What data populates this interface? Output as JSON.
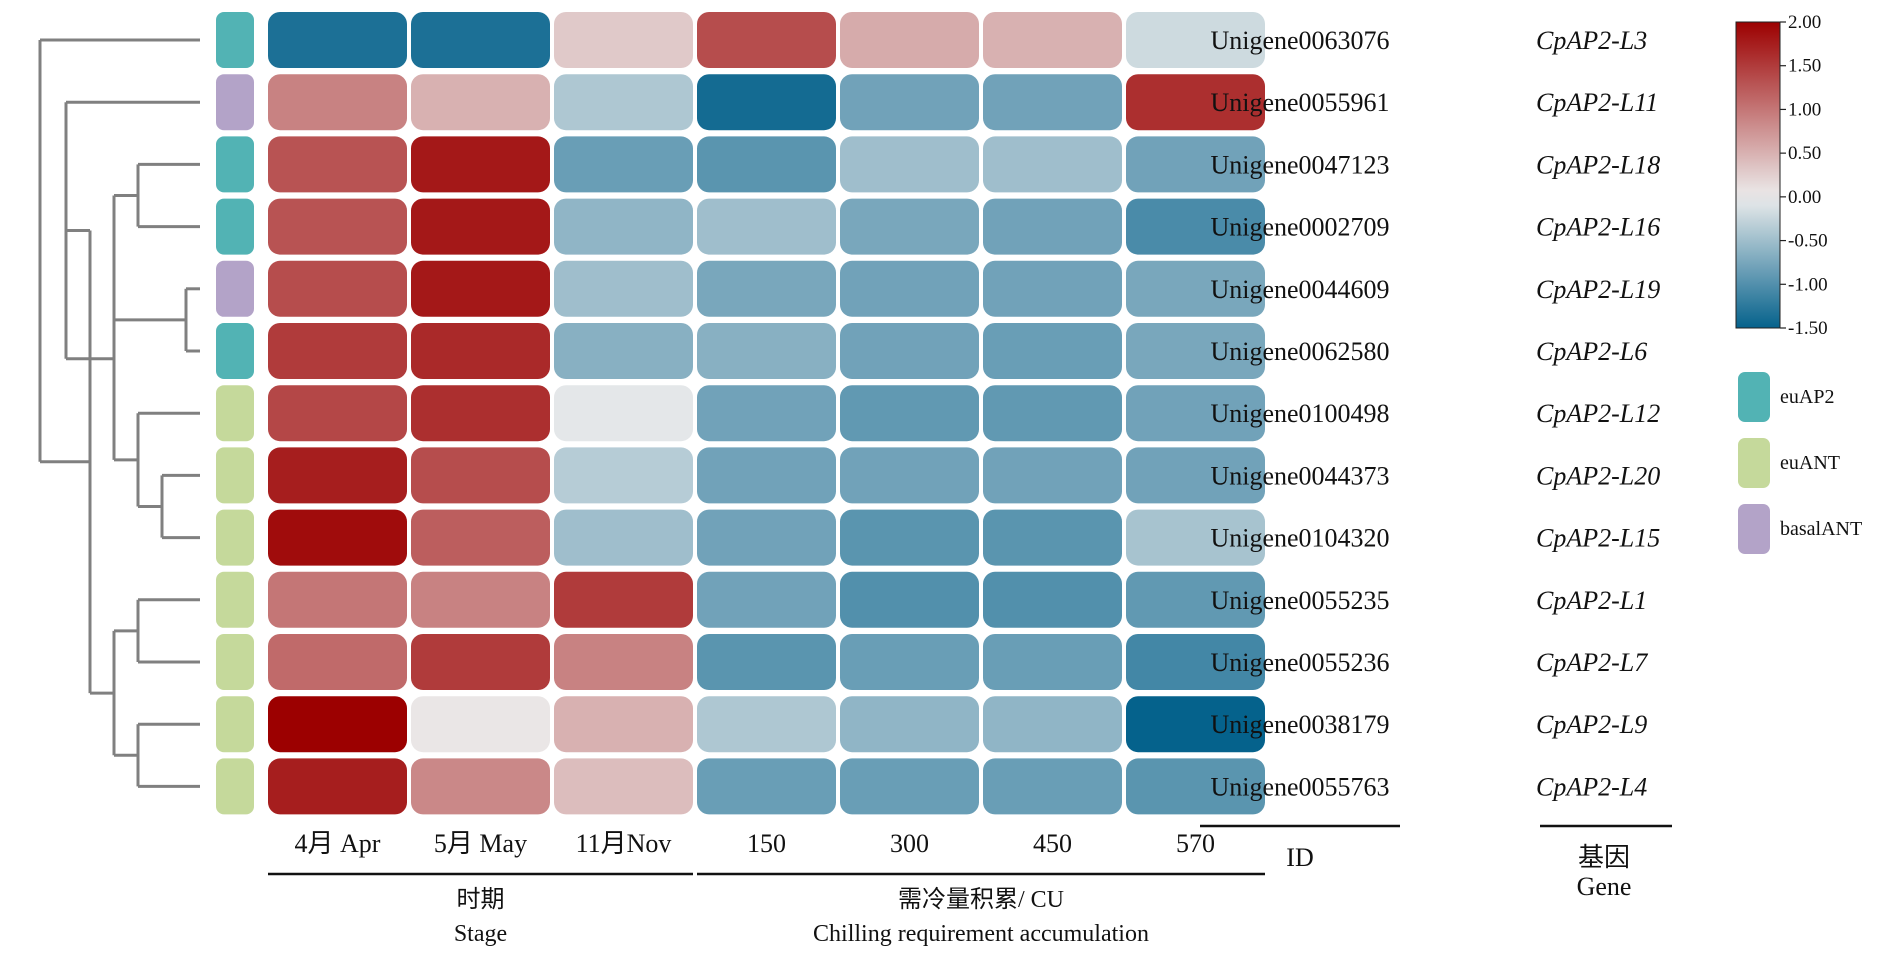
{
  "chart_data": {
    "type": "heatmap",
    "columns": [
      "4月 Apr",
      "5月 May",
      "11月Nov",
      "150",
      "300",
      "450",
      "570"
    ],
    "column_groups": [
      {
        "label_cn": "时期",
        "label_en": "Stage",
        "columns": [
          0,
          1,
          2
        ]
      },
      {
        "label_cn": "需冷量积累/  CU",
        "label_en": "Chilling requirement  accumulation",
        "columns": [
          3,
          4,
          5,
          6
        ]
      }
    ],
    "row_id_header": "ID",
    "gene_header_cn": "基因",
    "gene_header_en": "Gene",
    "rows": [
      {
        "id": "Unigene0063076",
        "gene": "CpAP2-L3",
        "subfamily": "euAP2",
        "values": [
          -1.35,
          -1.35,
          0.3,
          1.35,
          0.55,
          0.5,
          -0.2
        ]
      },
      {
        "id": "Unigene0055961",
        "gene": "CpAP2-L11",
        "subfamily": "basalANT",
        "values": [
          0.9,
          0.5,
          -0.4,
          -1.4,
          -0.8,
          -0.8,
          1.6
        ]
      },
      {
        "id": "Unigene0047123",
        "gene": "CpAP2-L18",
        "subfamily": "euAP2",
        "values": [
          1.3,
          1.8,
          -0.85,
          -0.95,
          -0.5,
          -0.5,
          -0.8
        ]
      },
      {
        "id": "Unigene0002709",
        "gene": "CpAP2-L16",
        "subfamily": "euAP2",
        "values": [
          1.3,
          1.8,
          -0.6,
          -0.5,
          -0.75,
          -0.8,
          -1.05
        ]
      },
      {
        "id": "Unigene0044609",
        "gene": "CpAP2-L19",
        "subfamily": "basalANT",
        "values": [
          1.35,
          1.8,
          -0.5,
          -0.75,
          -0.8,
          -0.8,
          -0.75
        ]
      },
      {
        "id": "Unigene0062580",
        "gene": "CpAP2-L6",
        "subfamily": "euAP2",
        "values": [
          1.5,
          1.65,
          -0.65,
          -0.65,
          -0.8,
          -0.85,
          -0.75
        ]
      },
      {
        "id": "Unigene0100498",
        "gene": "CpAP2-L12",
        "subfamily": "euANT",
        "values": [
          1.4,
          1.6,
          -0.05,
          -0.8,
          -0.9,
          -0.9,
          -0.8
        ]
      },
      {
        "id": "Unigene0044373",
        "gene": "CpAP2-L20",
        "subfamily": "euANT",
        "values": [
          1.75,
          1.35,
          -0.35,
          -0.8,
          -0.8,
          -0.8,
          -0.8
        ]
      },
      {
        "id": "Unigene0104320",
        "gene": "CpAP2-L15",
        "subfamily": "euANT",
        "values": [
          1.9,
          1.2,
          -0.5,
          -0.8,
          -0.95,
          -0.95,
          -0.45
        ]
      },
      {
        "id": "Unigene0055235",
        "gene": "CpAP2-L1",
        "subfamily": "euANT",
        "values": [
          1.0,
          0.9,
          1.5,
          -0.8,
          -1.0,
          -1.0,
          -0.9
        ]
      },
      {
        "id": "Unigene0055236",
        "gene": "CpAP2-L7",
        "subfamily": "euANT",
        "values": [
          1.1,
          1.5,
          0.9,
          -0.95,
          -0.85,
          -0.85,
          -1.1
        ]
      },
      {
        "id": "Unigene0038179",
        "gene": "CpAP2-L9",
        "subfamily": "euANT",
        "values": [
          2.0,
          0.05,
          0.5,
          -0.4,
          -0.6,
          -0.6,
          -1.5
        ]
      },
      {
        "id": "Unigene0055763",
        "gene": "CpAP2-L4",
        "subfamily": "euANT",
        "values": [
          1.75,
          0.85,
          0.4,
          -0.85,
          -0.85,
          -0.85,
          -0.95
        ]
      }
    ],
    "color_scale": {
      "min": -1.5,
      "max": 2.0,
      "low_color": "#05628c",
      "mid_color": "#ececec",
      "high_color": "#9c0000",
      "ticks": [
        "2.00",
        "1.50",
        "1.00",
        "0.50",
        "0.00",
        "-0.50",
        "-1.00",
        "-1.50"
      ]
    },
    "legend": [
      {
        "label": "euAP2",
        "color": "#52b3b4"
      },
      {
        "label": "euANT",
        "color": "#c5d99b"
      },
      {
        "label": "basalANT",
        "color": "#b3a3c8"
      }
    ],
    "dendrogram": {
      "type": "row clustering",
      "line_color": "#808080"
    }
  }
}
